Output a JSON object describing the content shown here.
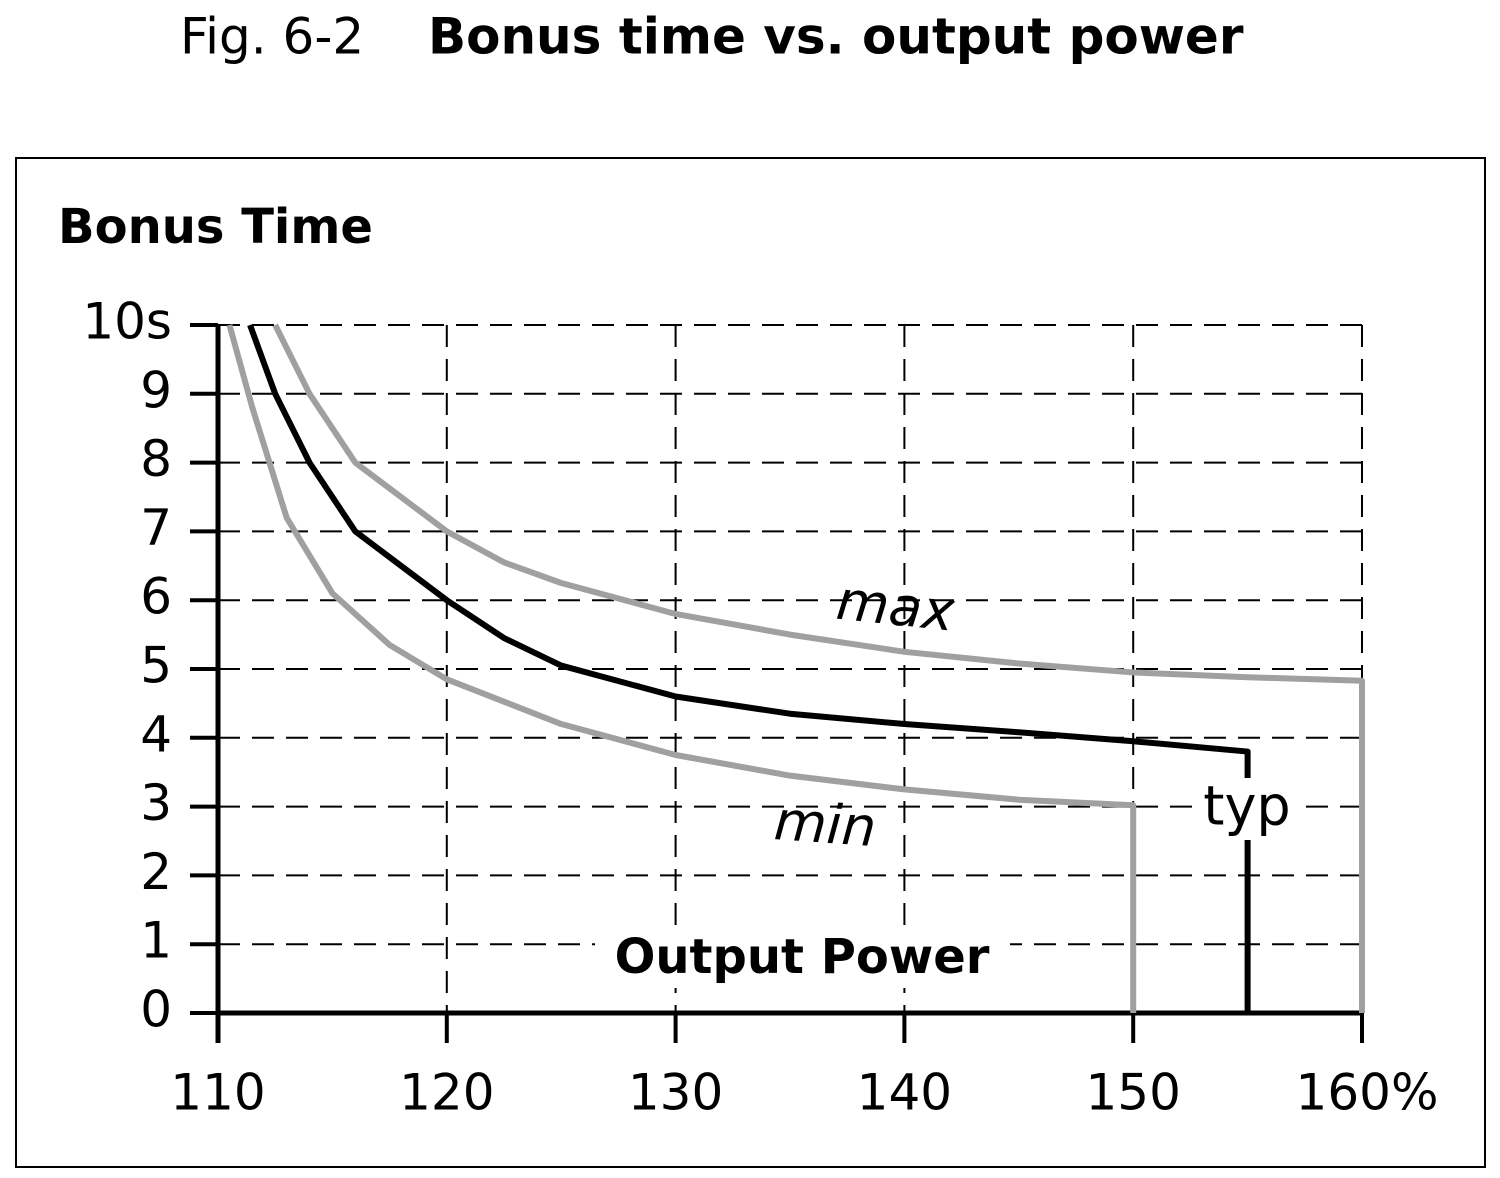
{
  "chart_data": {
    "type": "line",
    "figure_label": "Fig. 6-2",
    "title": "Bonus time vs. output power",
    "y_label": "Bonus Time",
    "x_label": "Output Power",
    "xlim": [
      110,
      160
    ],
    "ylim": [
      0,
      10
    ],
    "xticks": [
      110,
      120,
      130,
      140,
      150,
      {
        "value": 160,
        "label": "160%"
      }
    ],
    "yticks": [
      0,
      1,
      2,
      3,
      4,
      5,
      6,
      7,
      8,
      9,
      {
        "value": 10,
        "label": "10s"
      }
    ],
    "grid": true,
    "series": [
      {
        "name": "max",
        "color": "#a0a0a0",
        "x": [
          112.5,
          114,
          116,
          118,
          120,
          122.5,
          125,
          130,
          135,
          140,
          145,
          150,
          155,
          160,
          160
        ],
        "values": [
          10,
          9,
          8,
          7.5,
          7,
          6.55,
          6.25,
          5.8,
          5.5,
          5.25,
          5.08,
          4.95,
          4.88,
          4.83,
          0
        ]
      },
      {
        "name": "typ",
        "color": "#000000",
        "x": [
          111.4,
          112.5,
          114,
          116,
          118,
          120,
          122.5,
          125,
          130,
          135,
          140,
          145,
          150,
          155,
          155
        ],
        "values": [
          10,
          9,
          8,
          7,
          6.5,
          6,
          5.45,
          5.05,
          4.6,
          4.35,
          4.2,
          4.08,
          3.95,
          3.8,
          0
        ]
      },
      {
        "name": "min",
        "color": "#a0a0a0",
        "x": [
          110.5,
          111.5,
          113,
          115,
          117.5,
          120,
          125,
          130,
          135,
          140,
          145,
          150,
          150
        ],
        "values": [
          10,
          8.8,
          7.2,
          6.1,
          5.35,
          4.85,
          4.2,
          3.75,
          3.45,
          3.25,
          3.1,
          3.02,
          0
        ]
      }
    ]
  }
}
